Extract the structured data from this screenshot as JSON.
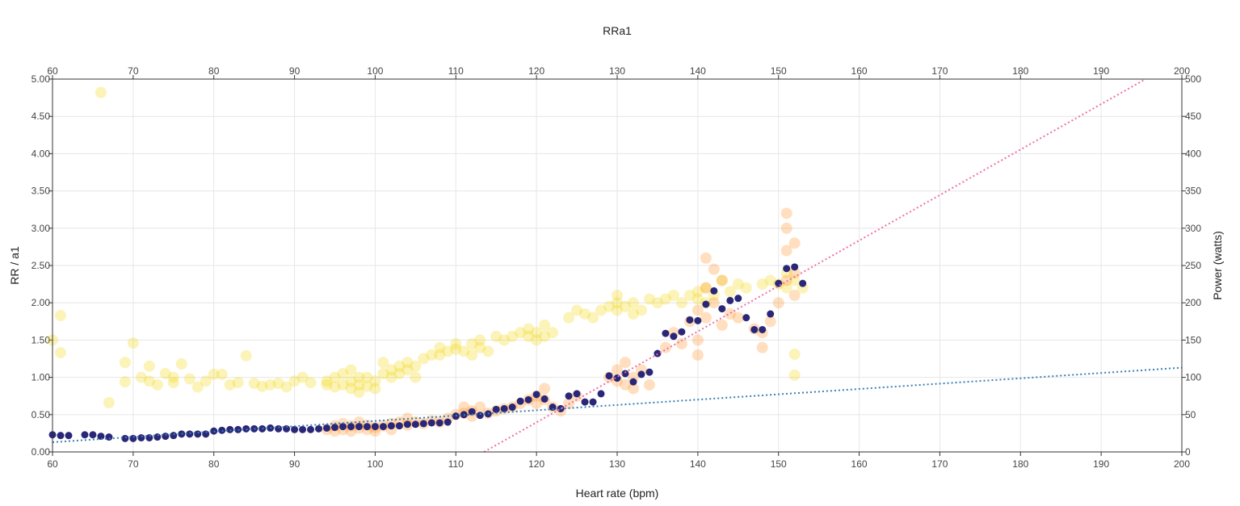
{
  "chart_data": {
    "type": "scatter",
    "title": "RRa1",
    "xlabel": "Heart rate (bpm)",
    "ylabel": "RR / a1",
    "y2label": "Power (watts)",
    "xlim": [
      60,
      200
    ],
    "ylim": [
      0,
      5
    ],
    "y2lim": [
      0,
      500
    ],
    "xticks": [
      "60",
      "70",
      "80",
      "90",
      "100",
      "110",
      "120",
      "130",
      "140",
      "150",
      "160",
      "170",
      "180",
      "190",
      "200"
    ],
    "yticks": [
      "0.00",
      "0.50",
      "1.00",
      "1.50",
      "2.00",
      "2.50",
      "3.00",
      "3.50",
      "4.00",
      "4.50",
      "5.00"
    ],
    "y2ticks": [
      "0",
      "50",
      "100",
      "150",
      "200",
      "250",
      "300",
      "350",
      "400",
      "450",
      "500"
    ],
    "grid": true,
    "colors": {
      "rr": "#f2d300",
      "power": "#ff8c1a",
      "a1": "#2a2778",
      "a1_trend": "#3a7fb5",
      "power_trend": "#ee6fa8"
    },
    "series": [
      {
        "axis": "left",
        "style": "translucent-yellow",
        "points": [
          [
            60,
            1.5
          ],
          [
            61,
            1.83
          ],
          [
            61,
            1.33
          ],
          [
            66,
            4.82
          ],
          [
            67,
            0.66
          ],
          [
            69,
            1.2
          ],
          [
            69,
            0.94
          ],
          [
            70,
            1.46
          ],
          [
            71,
            1.0
          ],
          [
            72,
            1.15
          ],
          [
            72,
            0.95
          ],
          [
            73,
            0.9
          ],
          [
            74,
            1.05
          ],
          [
            75,
            1.0
          ],
          [
            75,
            0.93
          ],
          [
            76,
            1.18
          ],
          [
            77,
            0.98
          ],
          [
            78,
            0.87
          ],
          [
            79,
            0.95
          ],
          [
            80,
            1.04
          ],
          [
            81,
            1.04
          ],
          [
            82,
            0.9
          ],
          [
            83,
            0.93
          ],
          [
            84,
            1.29
          ],
          [
            85,
            0.92
          ],
          [
            86,
            0.88
          ],
          [
            87,
            0.9
          ],
          [
            88,
            0.92
          ],
          [
            89,
            0.87
          ],
          [
            90,
            0.95
          ],
          [
            91,
            1.0
          ],
          [
            92,
            0.93
          ],
          [
            94,
            0.9
          ],
          [
            94,
            0.95
          ],
          [
            95,
            0.87
          ],
          [
            95,
            1.0
          ],
          [
            96,
            0.9
          ],
          [
            96,
            1.05
          ],
          [
            97,
            0.85
          ],
          [
            97,
            0.95
          ],
          [
            97,
            1.1
          ],
          [
            98,
            0.9
          ],
          [
            98,
            1.0
          ],
          [
            98,
            0.8
          ],
          [
            99,
            0.88
          ],
          [
            99,
            1.0
          ],
          [
            100,
            0.95
          ],
          [
            100,
            0.85
          ],
          [
            101,
            1.05
          ],
          [
            101,
            1.2
          ],
          [
            102,
            1.1
          ],
          [
            102,
            1.0
          ],
          [
            103,
            1.15
          ],
          [
            103,
            1.05
          ],
          [
            104,
            1.1
          ],
          [
            104,
            1.2
          ],
          [
            105,
            1.0
          ],
          [
            105,
            1.15
          ],
          [
            106,
            1.25
          ],
          [
            107,
            1.3
          ],
          [
            108,
            1.4
          ],
          [
            108,
            1.3
          ],
          [
            109,
            1.35
          ],
          [
            110,
            1.45
          ],
          [
            110,
            1.38
          ],
          [
            111,
            1.35
          ],
          [
            112,
            1.3
          ],
          [
            112,
            1.45
          ],
          [
            113,
            1.4
          ],
          [
            113,
            1.5
          ],
          [
            114,
            1.35
          ],
          [
            115,
            1.55
          ],
          [
            116,
            1.5
          ],
          [
            117,
            1.55
          ],
          [
            118,
            1.6
          ],
          [
            119,
            1.65
          ],
          [
            119,
            1.55
          ],
          [
            120,
            1.6
          ],
          [
            120,
            1.5
          ],
          [
            121,
            1.7
          ],
          [
            121,
            1.55
          ],
          [
            122,
            1.6
          ],
          [
            124,
            1.8
          ],
          [
            125,
            1.9
          ],
          [
            126,
            1.85
          ],
          [
            127,
            1.8
          ],
          [
            128,
            1.9
          ],
          [
            129,
            1.95
          ],
          [
            130,
            2.0
          ],
          [
            130,
            1.9
          ],
          [
            130,
            2.1
          ],
          [
            131,
            1.95
          ],
          [
            132,
            1.85
          ],
          [
            132,
            2.0
          ],
          [
            133,
            1.9
          ],
          [
            134,
            2.05
          ],
          [
            135,
            2.0
          ],
          [
            136,
            2.05
          ],
          [
            137,
            2.1
          ],
          [
            138,
            2.0
          ],
          [
            139,
            2.1
          ],
          [
            140,
            2.15
          ],
          [
            140,
            2.05
          ],
          [
            141,
            2.2
          ],
          [
            141,
            2.0
          ],
          [
            142,
            2.1
          ],
          [
            143,
            2.3
          ],
          [
            144,
            2.15
          ],
          [
            145,
            2.25
          ],
          [
            146,
            2.2
          ],
          [
            148,
            2.25
          ],
          [
            149,
            2.3
          ],
          [
            150,
            2.25
          ],
          [
            151,
            2.4
          ],
          [
            151,
            2.2
          ],
          [
            152,
            2.3
          ],
          [
            152,
            1.31
          ],
          [
            152,
            1.03
          ],
          [
            153,
            2.2
          ]
        ]
      },
      {
        "axis": "right",
        "style": "translucent-orange",
        "points": [
          [
            94,
            30
          ],
          [
            95,
            35
          ],
          [
            95,
            28
          ],
          [
            96,
            38
          ],
          [
            96,
            30
          ],
          [
            97,
            35
          ],
          [
            97,
            28
          ],
          [
            98,
            32
          ],
          [
            98,
            40
          ],
          [
            99,
            30
          ],
          [
            99,
            36
          ],
          [
            100,
            33
          ],
          [
            100,
            28
          ],
          [
            101,
            35
          ],
          [
            102,
            38
          ],
          [
            102,
            30
          ],
          [
            103,
            40
          ],
          [
            104,
            36
          ],
          [
            104,
            45
          ],
          [
            105,
            40
          ],
          [
            106,
            38
          ],
          [
            107,
            42
          ],
          [
            108,
            40
          ],
          [
            109,
            45
          ],
          [
            110,
            50
          ],
          [
            111,
            52
          ],
          [
            111,
            60
          ],
          [
            112,
            55
          ],
          [
            112,
            48
          ],
          [
            113,
            60
          ],
          [
            114,
            52
          ],
          [
            115,
            55
          ],
          [
            116,
            58
          ],
          [
            117,
            60
          ],
          [
            118,
            65
          ],
          [
            119,
            70
          ],
          [
            120,
            75
          ],
          [
            120,
            65
          ],
          [
            121,
            85
          ],
          [
            121,
            70
          ],
          [
            122,
            60
          ],
          [
            123,
            55
          ],
          [
            124,
            65
          ],
          [
            125,
            75
          ],
          [
            129,
            100
          ],
          [
            130,
            110
          ],
          [
            130,
            95
          ],
          [
            131,
            120
          ],
          [
            131,
            90
          ],
          [
            132,
            100
          ],
          [
            132,
            85
          ],
          [
            133,
            110
          ],
          [
            134,
            90
          ],
          [
            136,
            140
          ],
          [
            137,
            160
          ],
          [
            138,
            145
          ],
          [
            139,
            175
          ],
          [
            140,
            150
          ],
          [
            140,
            190
          ],
          [
            140,
            130
          ],
          [
            141,
            220
          ],
          [
            141,
            260
          ],
          [
            141,
            180
          ],
          [
            142,
            200
          ],
          [
            142,
            245
          ],
          [
            143,
            230
          ],
          [
            143,
            170
          ],
          [
            144,
            185
          ],
          [
            145,
            180
          ],
          [
            147,
            165
          ],
          [
            148,
            160
          ],
          [
            148,
            140
          ],
          [
            149,
            175
          ],
          [
            150,
            200
          ],
          [
            151,
            230
          ],
          [
            151,
            270
          ],
          [
            151,
            300
          ],
          [
            152,
            240
          ],
          [
            152,
            210
          ],
          [
            152,
            280
          ],
          [
            151,
            320
          ]
        ]
      },
      {
        "axis": "left",
        "style": "solid-navy",
        "points": [
          [
            60,
            0.23
          ],
          [
            61,
            0.22
          ],
          [
            62,
            0.22
          ],
          [
            64,
            0.23
          ],
          [
            65,
            0.23
          ],
          [
            66,
            0.21
          ],
          [
            67,
            0.2
          ],
          [
            69,
            0.18
          ],
          [
            70,
            0.18
          ],
          [
            71,
            0.19
          ],
          [
            72,
            0.19
          ],
          [
            73,
            0.2
          ],
          [
            74,
            0.21
          ],
          [
            75,
            0.22
          ],
          [
            76,
            0.24
          ],
          [
            77,
            0.24
          ],
          [
            78,
            0.24
          ],
          [
            79,
            0.24
          ],
          [
            80,
            0.28
          ],
          [
            81,
            0.29
          ],
          [
            82,
            0.3
          ],
          [
            83,
            0.3
          ],
          [
            84,
            0.31
          ],
          [
            85,
            0.31
          ],
          [
            86,
            0.31
          ],
          [
            87,
            0.32
          ],
          [
            88,
            0.31
          ],
          [
            89,
            0.31
          ],
          [
            90,
            0.3
          ],
          [
            91,
            0.3
          ],
          [
            92,
            0.3
          ],
          [
            93,
            0.31
          ],
          [
            94,
            0.32
          ],
          [
            95,
            0.33
          ],
          [
            96,
            0.34
          ],
          [
            97,
            0.34
          ],
          [
            98,
            0.34
          ],
          [
            99,
            0.34
          ],
          [
            100,
            0.34
          ],
          [
            101,
            0.34
          ],
          [
            102,
            0.35
          ],
          [
            103,
            0.35
          ],
          [
            104,
            0.37
          ],
          [
            105,
            0.37
          ],
          [
            106,
            0.38
          ],
          [
            107,
            0.39
          ],
          [
            108,
            0.39
          ],
          [
            109,
            0.4
          ],
          [
            110,
            0.48
          ],
          [
            111,
            0.5
          ],
          [
            112,
            0.54
          ],
          [
            113,
            0.49
          ],
          [
            114,
            0.51
          ],
          [
            115,
            0.57
          ],
          [
            116,
            0.58
          ],
          [
            117,
            0.6
          ],
          [
            118,
            0.68
          ],
          [
            119,
            0.7
          ],
          [
            120,
            0.77
          ],
          [
            121,
            0.71
          ],
          [
            122,
            0.6
          ],
          [
            123,
            0.58
          ],
          [
            124,
            0.75
          ],
          [
            125,
            0.78
          ],
          [
            126,
            0.67
          ],
          [
            127,
            0.67
          ],
          [
            128,
            0.78
          ],
          [
            129,
            1.02
          ],
          [
            130,
            0.99
          ],
          [
            131,
            1.05
          ],
          [
            132,
            0.94
          ],
          [
            133,
            1.04
          ],
          [
            134,
            1.07
          ],
          [
            135,
            1.32
          ],
          [
            136,
            1.59
          ],
          [
            137,
            1.55
          ],
          [
            138,
            1.61
          ],
          [
            139,
            1.77
          ],
          [
            140,
            1.76
          ],
          [
            141,
            1.98
          ],
          [
            142,
            2.16
          ],
          [
            143,
            1.92
          ],
          [
            144,
            2.03
          ],
          [
            145,
            2.06
          ],
          [
            146,
            1.8
          ],
          [
            147,
            1.64
          ],
          [
            148,
            1.64
          ],
          [
            149,
            1.85
          ],
          [
            150,
            2.26
          ],
          [
            151,
            2.46
          ],
          [
            152,
            2.48
          ],
          [
            153,
            2.26
          ]
        ]
      }
    ],
    "trendlines": [
      {
        "axis": "left",
        "style": "dotted-blue",
        "x": [
          60,
          200
        ],
        "y": [
          0.13,
          1.13
        ]
      },
      {
        "axis": "right",
        "style": "dotted-pink",
        "x": [
          113.5,
          195.5
        ],
        "y": [
          0,
          500
        ]
      }
    ]
  }
}
